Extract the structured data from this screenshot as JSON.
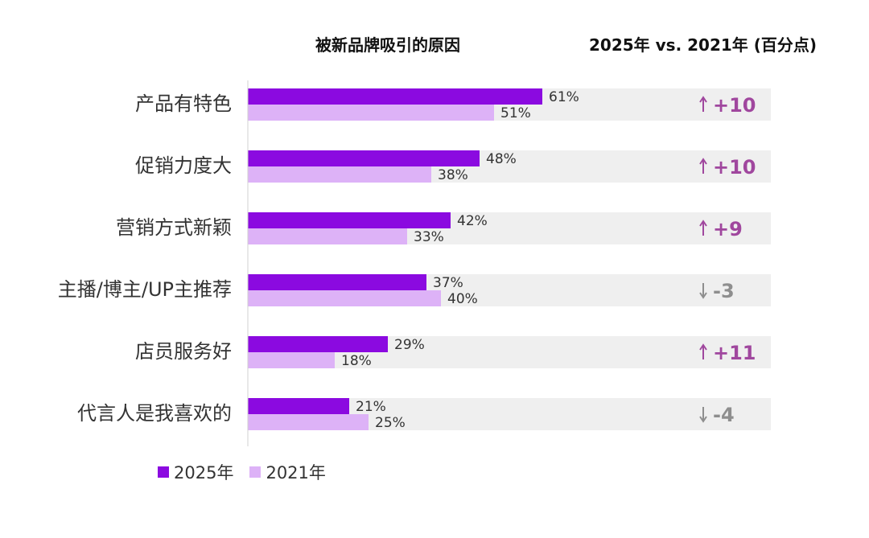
{
  "header": {
    "left_title": "被新品牌吸引的原因",
    "right_title": "2025年 vs. 2021年 (百分点)"
  },
  "colors": {
    "series_2025": "#8B0AE0",
    "series_2021": "#DDB2F7",
    "row_bg": "#EFEFEF",
    "up": "#A0479E",
    "down": "#8E8E8E"
  },
  "chart_data": {
    "type": "bar",
    "orientation": "horizontal",
    "categories": [
      "产品有特色",
      "促销力度大",
      "营销方式新颖",
      "主播/博主/UP主推荐",
      "店员服务好",
      "代言人是我喜欢的"
    ],
    "series": [
      {
        "name": "2025年",
        "values": [
          61,
          48,
          42,
          37,
          29,
          21
        ],
        "labels": [
          "61%",
          "48%",
          "42%",
          "37%",
          "29%",
          "21%"
        ]
      },
      {
        "name": "2021年",
        "values": [
          51,
          38,
          33,
          40,
          18,
          25
        ],
        "labels": [
          "51%",
          "38%",
          "33%",
          "40%",
          "18%",
          "25%"
        ]
      }
    ],
    "changes": [
      {
        "value": 10,
        "label": "+10",
        "direction": "up"
      },
      {
        "value": 10,
        "label": "+10",
        "direction": "up"
      },
      {
        "value": 9,
        "label": "+9",
        "direction": "up"
      },
      {
        "value": -3,
        "label": "-3",
        "direction": "down"
      },
      {
        "value": 11,
        "label": "+11",
        "direction": "up"
      },
      {
        "value": -4,
        "label": "-4",
        "direction": "down"
      }
    ],
    "legend": "bottom-left"
  },
  "legend": {
    "items": [
      {
        "label": "2025年",
        "color": "#8B0AE0"
      },
      {
        "label": "2021年",
        "color": "#DDB2F7"
      }
    ]
  }
}
